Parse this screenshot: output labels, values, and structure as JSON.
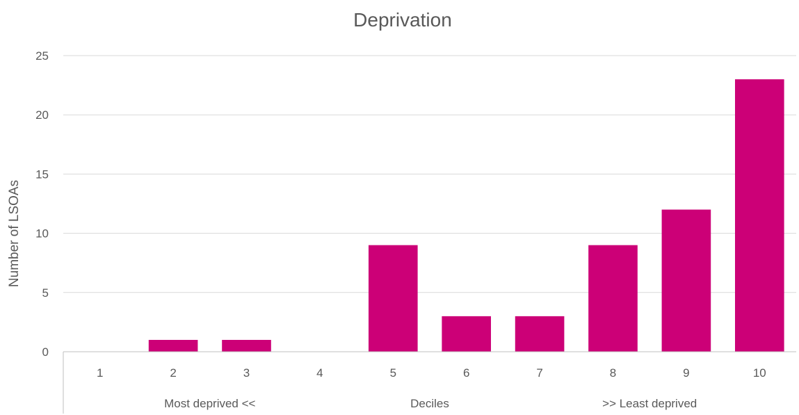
{
  "chart_data": {
    "type": "bar",
    "title": "Deprivation",
    "ylabel": "Number of LSOAs",
    "xlabel": "",
    "categories": [
      "1",
      "2",
      "3",
      "4",
      "5",
      "6",
      "7",
      "8",
      "9",
      "10"
    ],
    "values": [
      0,
      1,
      1,
      0,
      9,
      3,
      3,
      9,
      12,
      23
    ],
    "ylim": [
      0,
      25
    ],
    "yticks": [
      0,
      5,
      10,
      15,
      20,
      25
    ],
    "yticks_labels": [
      "0",
      "5",
      "10",
      "15",
      "20",
      "25"
    ],
    "x_group_labels": [
      "Most deprived <<",
      "Deciles",
      ">> Least deprived"
    ],
    "grid": true,
    "legend": "none",
    "bar_color": "#CC0077"
  }
}
